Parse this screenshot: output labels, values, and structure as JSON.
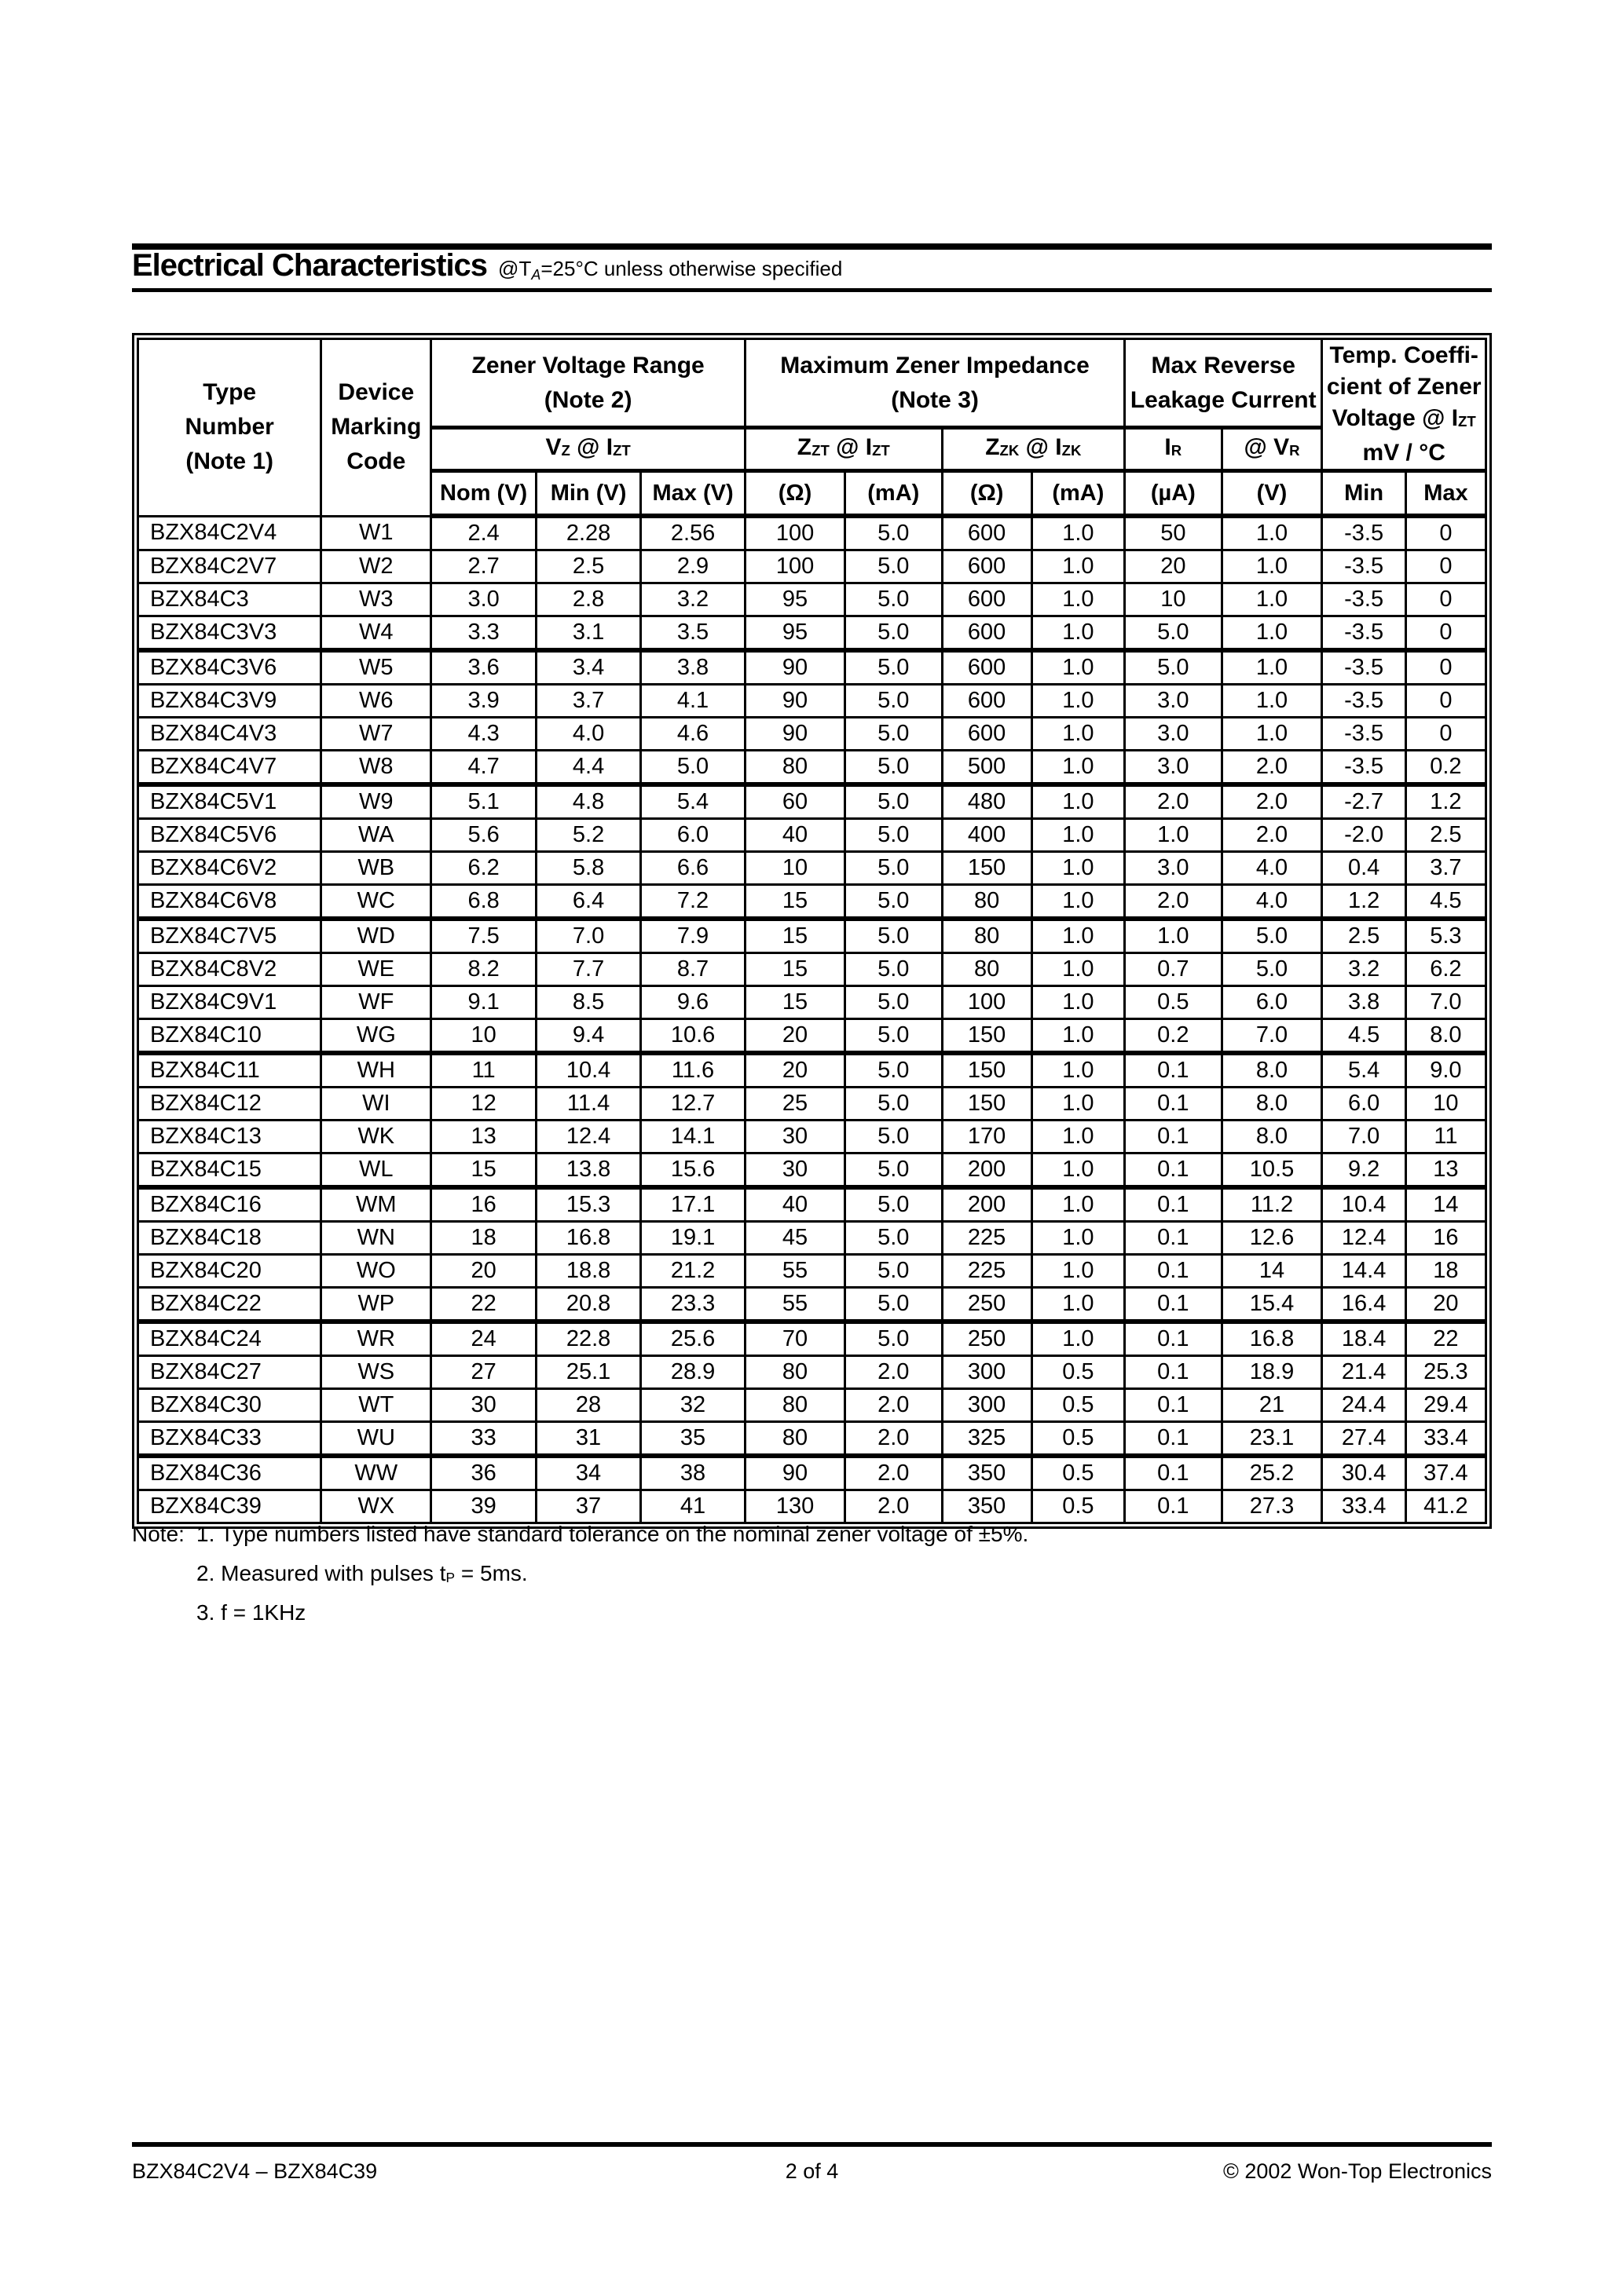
{
  "title": {
    "main": "Electrical Characteristics",
    "at": "@T",
    "sub": "A",
    "rest": "=25°C unless otherwise specified"
  },
  "table": {
    "header": {
      "type_number_lines": [
        "Type",
        "Number",
        "(Note 1)"
      ],
      "device_marking_lines": [
        "Device",
        "Marking",
        "Code"
      ],
      "zener_voltage_range_lines": [
        "Zener Voltage Range",
        "(Note 2)"
      ],
      "max_zener_impedance_lines": [
        "Maximum Zener Impedance",
        "(Note 3)"
      ],
      "max_reverse_leakage_lines": [
        "Max Reverse",
        "Leakage Current"
      ],
      "temp_coeff_line1": "Temp. Coeffi-",
      "temp_coeff_line2": "cient of Zener",
      "temp_coeff_line3": {
        "m1": "Voltage @ I",
        "s1": "ZT"
      },
      "temp_coeff_line4": "mV / °C",
      "vz_izt": {
        "m1": "V",
        "s1": "Z",
        "m2": " @ I",
        "s2": "ZT"
      },
      "zzt_izt": {
        "m1": "Z",
        "s1": "ZT",
        "m2": " @ I",
        "s2": "ZT"
      },
      "zzk_izk": {
        "m1": "Z",
        "s1": "ZK",
        "m2": " @ I",
        "s2": "ZK"
      },
      "ir": {
        "m1": "I",
        "s1": "R"
      },
      "vr": {
        "m1": "@ V",
        "s1": "R"
      },
      "units": [
        "Nom (V)",
        "Min (V)",
        "Max (V)",
        "(Ω)",
        "(mA)",
        "(Ω)",
        "(mA)",
        "(µA)",
        "(V)",
        "Min",
        "Max"
      ]
    },
    "group_size": 4,
    "rows": [
      [
        "BZX84C2V4",
        "W1",
        "2.4",
        "2.28",
        "2.56",
        "100",
        "5.0",
        "600",
        "1.0",
        "50",
        "1.0",
        "-3.5",
        "0"
      ],
      [
        "BZX84C2V7",
        "W2",
        "2.7",
        "2.5",
        "2.9",
        "100",
        "5.0",
        "600",
        "1.0",
        "20",
        "1.0",
        "-3.5",
        "0"
      ],
      [
        "BZX84C3",
        "W3",
        "3.0",
        "2.8",
        "3.2",
        "95",
        "5.0",
        "600",
        "1.0",
        "10",
        "1.0",
        "-3.5",
        "0"
      ],
      [
        "BZX84C3V3",
        "W4",
        "3.3",
        "3.1",
        "3.5",
        "95",
        "5.0",
        "600",
        "1.0",
        "5.0",
        "1.0",
        "-3.5",
        "0"
      ],
      [
        "BZX84C3V6",
        "W5",
        "3.6",
        "3.4",
        "3.8",
        "90",
        "5.0",
        "600",
        "1.0",
        "5.0",
        "1.0",
        "-3.5",
        "0"
      ],
      [
        "BZX84C3V9",
        "W6",
        "3.9",
        "3.7",
        "4.1",
        "90",
        "5.0",
        "600",
        "1.0",
        "3.0",
        "1.0",
        "-3.5",
        "0"
      ],
      [
        "BZX84C4V3",
        "W7",
        "4.3",
        "4.0",
        "4.6",
        "90",
        "5.0",
        "600",
        "1.0",
        "3.0",
        "1.0",
        "-3.5",
        "0"
      ],
      [
        "BZX84C4V7",
        "W8",
        "4.7",
        "4.4",
        "5.0",
        "80",
        "5.0",
        "500",
        "1.0",
        "3.0",
        "2.0",
        "-3.5",
        "0.2"
      ],
      [
        "BZX84C5V1",
        "W9",
        "5.1",
        "4.8",
        "5.4",
        "60",
        "5.0",
        "480",
        "1.0",
        "2.0",
        "2.0",
        "-2.7",
        "1.2"
      ],
      [
        "BZX84C5V6",
        "WA",
        "5.6",
        "5.2",
        "6.0",
        "40",
        "5.0",
        "400",
        "1.0",
        "1.0",
        "2.0",
        "-2.0",
        "2.5"
      ],
      [
        "BZX84C6V2",
        "WB",
        "6.2",
        "5.8",
        "6.6",
        "10",
        "5.0",
        "150",
        "1.0",
        "3.0",
        "4.0",
        "0.4",
        "3.7"
      ],
      [
        "BZX84C6V8",
        "WC",
        "6.8",
        "6.4",
        "7.2",
        "15",
        "5.0",
        "80",
        "1.0",
        "2.0",
        "4.0",
        "1.2",
        "4.5"
      ],
      [
        "BZX84C7V5",
        "WD",
        "7.5",
        "7.0",
        "7.9",
        "15",
        "5.0",
        "80",
        "1.0",
        "1.0",
        "5.0",
        "2.5",
        "5.3"
      ],
      [
        "BZX84C8V2",
        "WE",
        "8.2",
        "7.7",
        "8.7",
        "15",
        "5.0",
        "80",
        "1.0",
        "0.7",
        "5.0",
        "3.2",
        "6.2"
      ],
      [
        "BZX84C9V1",
        "WF",
        "9.1",
        "8.5",
        "9.6",
        "15",
        "5.0",
        "100",
        "1.0",
        "0.5",
        "6.0",
        "3.8",
        "7.0"
      ],
      [
        "BZX84C10",
        "WG",
        "10",
        "9.4",
        "10.6",
        "20",
        "5.0",
        "150",
        "1.0",
        "0.2",
        "7.0",
        "4.5",
        "8.0"
      ],
      [
        "BZX84C11",
        "WH",
        "11",
        "10.4",
        "11.6",
        "20",
        "5.0",
        "150",
        "1.0",
        "0.1",
        "8.0",
        "5.4",
        "9.0"
      ],
      [
        "BZX84C12",
        "WI",
        "12",
        "11.4",
        "12.7",
        "25",
        "5.0",
        "150",
        "1.0",
        "0.1",
        "8.0",
        "6.0",
        "10"
      ],
      [
        "BZX84C13",
        "WK",
        "13",
        "12.4",
        "14.1",
        "30",
        "5.0",
        "170",
        "1.0",
        "0.1",
        "8.0",
        "7.0",
        "11"
      ],
      [
        "BZX84C15",
        "WL",
        "15",
        "13.8",
        "15.6",
        "30",
        "5.0",
        "200",
        "1.0",
        "0.1",
        "10.5",
        "9.2",
        "13"
      ],
      [
        "BZX84C16",
        "WM",
        "16",
        "15.3",
        "17.1",
        "40",
        "5.0",
        "200",
        "1.0",
        "0.1",
        "11.2",
        "10.4",
        "14"
      ],
      [
        "BZX84C18",
        "WN",
        "18",
        "16.8",
        "19.1",
        "45",
        "5.0",
        "225",
        "1.0",
        "0.1",
        "12.6",
        "12.4",
        "16"
      ],
      [
        "BZX84C20",
        "WO",
        "20",
        "18.8",
        "21.2",
        "55",
        "5.0",
        "225",
        "1.0",
        "0.1",
        "14",
        "14.4",
        "18"
      ],
      [
        "BZX84C22",
        "WP",
        "22",
        "20.8",
        "23.3",
        "55",
        "5.0",
        "250",
        "1.0",
        "0.1",
        "15.4",
        "16.4",
        "20"
      ],
      [
        "BZX84C24",
        "WR",
        "24",
        "22.8",
        "25.6",
        "70",
        "5.0",
        "250",
        "1.0",
        "0.1",
        "16.8",
        "18.4",
        "22"
      ],
      [
        "BZX84C27",
        "WS",
        "27",
        "25.1",
        "28.9",
        "80",
        "2.0",
        "300",
        "0.5",
        "0.1",
        "18.9",
        "21.4",
        "25.3"
      ],
      [
        "BZX84C30",
        "WT",
        "30",
        "28",
        "32",
        "80",
        "2.0",
        "300",
        "0.5",
        "0.1",
        "21",
        "24.4",
        "29.4"
      ],
      [
        "BZX84C33",
        "WU",
        "33",
        "31",
        "35",
        "80",
        "2.0",
        "325",
        "0.5",
        "0.1",
        "23.1",
        "27.4",
        "33.4"
      ],
      [
        "BZX84C36",
        "WW",
        "36",
        "34",
        "38",
        "90",
        "2.0",
        "350",
        "0.5",
        "0.1",
        "25.2",
        "30.4",
        "37.4"
      ],
      [
        "BZX84C39",
        "WX",
        "39",
        "37",
        "41",
        "130",
        "2.0",
        "350",
        "0.5",
        "0.1",
        "27.3",
        "33.4",
        "41.2"
      ]
    ]
  },
  "notes": {
    "label": "Note:",
    "note1": "1. Type numbers listed have standard tolerance on the nominal zener voltage of ±5%.",
    "note2": {
      "m1": "2. Measured with pulses t",
      "s1": "P",
      "m2": " = 5ms."
    },
    "note3": "3. f = 1KHz"
  },
  "footer": {
    "left": "BZX84C2V4 – BZX84C39",
    "center": "2 of 4",
    "right": "© 2002 Won-Top Electronics"
  }
}
